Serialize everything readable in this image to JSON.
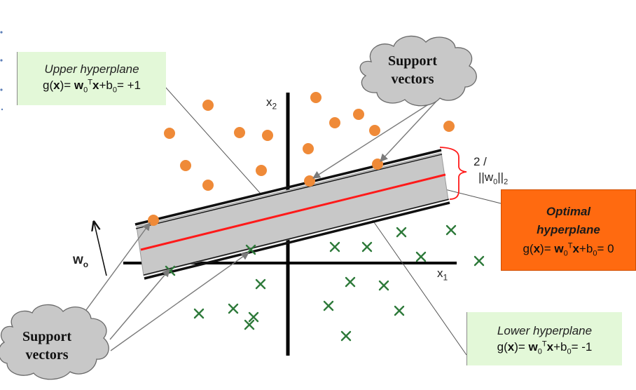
{
  "upper_hyperplane": {
    "title": "Upper hyperplane",
    "g": "g",
    "x_arg": "x",
    "eq_mid": ")= ",
    "w": "w",
    "sub0": "0",
    "sup_T": "T",
    "x": "x",
    "b_term": "+b",
    "rhs": "= +1"
  },
  "lower_hyperplane": {
    "title": "Lower hyperplane",
    "g": "g",
    "x_arg": "x",
    "eq_mid": ")= ",
    "w": "w",
    "sub0": "0",
    "sup_T": "T",
    "x": "x",
    "b_term": "+b",
    "rhs": "= -1"
  },
  "optimal_hyperplane": {
    "title_line1": "Optimal",
    "title_line2": "hyperplane",
    "g": "g",
    "x_arg": "x",
    "eq_mid": ")= ",
    "w": "w",
    "sub0": "0",
    "sup_T": "T",
    "x": "x",
    "b_term": "+b",
    "rhs": "= 0"
  },
  "support_vectors_top": {
    "line1": "Support",
    "line2": "vectors"
  },
  "support_vectors_bottom": {
    "line1": "Support",
    "line2": "vectors"
  },
  "axes": {
    "x1": "x",
    "x1_sub": "1",
    "x2": "x",
    "x2_sub": "2"
  },
  "normal_vector": {
    "label": "w",
    "sub": "o"
  },
  "margin": {
    "numerator": "2 /",
    "denominator": "||w",
    "denominator_sub": "0",
    "denominator_end": "||",
    "norm_sub": "2"
  },
  "colors": {
    "class_positive": "#ef8a38",
    "class_negative": "#2e7a3a",
    "optimal_line": "#ff1a1a",
    "margin_band": "#c8c8c8",
    "green_box": "#e3f8d8",
    "orange_box": "#ff6a10",
    "cloud": "#c8c8c8"
  }
}
